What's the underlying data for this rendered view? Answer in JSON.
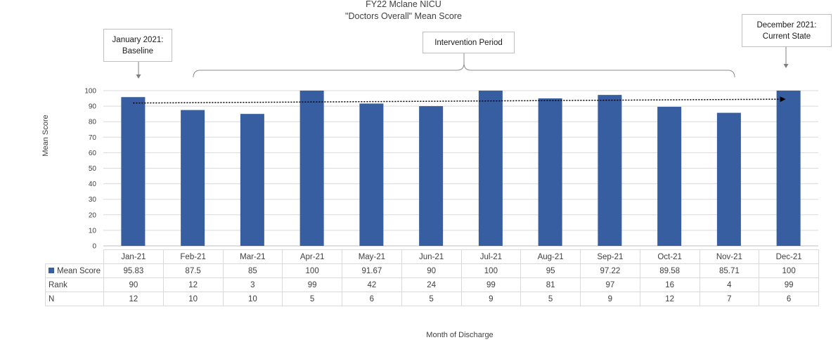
{
  "chart_data": {
    "type": "bar",
    "title": [
      "FY22 Mclane NICU",
      "\"Doctors Overall\" Mean Score"
    ],
    "ylabel": "Mean Score",
    "xlabel": "Month of Discharge",
    "ylim": [
      0,
      100
    ],
    "yticks": [
      0,
      10,
      20,
      30,
      40,
      50,
      60,
      70,
      80,
      90,
      100
    ],
    "grid": true,
    "bar_color": "#365ea0",
    "categories": [
      "Jan-21",
      "Feb-21",
      "Mar-21",
      "Apr-21",
      "May-21",
      "Jun-21",
      "Jul-21",
      "Aug-21",
      "Sep-21",
      "Oct-21",
      "Nov-21",
      "Dec-21"
    ],
    "series": [
      {
        "name": "Mean Score",
        "values": [
          95.83,
          87.5,
          85,
          100,
          91.67,
          90,
          100,
          95,
          97.22,
          89.58,
          85.71,
          100
        ]
      }
    ],
    "table_rows": [
      {
        "label": "Mean Score",
        "values": [
          "95.83",
          "87.5",
          "85",
          "100",
          "91.67",
          "90",
          "100",
          "95",
          "97.22",
          "89.58",
          "85.71",
          "100"
        ]
      },
      {
        "label": "Rank",
        "values": [
          "90",
          "12",
          "3",
          "99",
          "42",
          "24",
          "99",
          "81",
          "97",
          "16",
          "4",
          "99"
        ]
      },
      {
        "label": "N",
        "values": [
          "12",
          "10",
          "10",
          "5",
          "6",
          "5",
          "9",
          "5",
          "9",
          "12",
          "7",
          "6"
        ]
      }
    ],
    "trendline": {
      "style": "dotted",
      "from": 92,
      "to": 94.5
    },
    "annotations": {
      "baseline": [
        "January 2021:",
        "Baseline"
      ],
      "intervention": "Intervention Period",
      "current": [
        "December 2021:",
        "Current State"
      ]
    }
  }
}
